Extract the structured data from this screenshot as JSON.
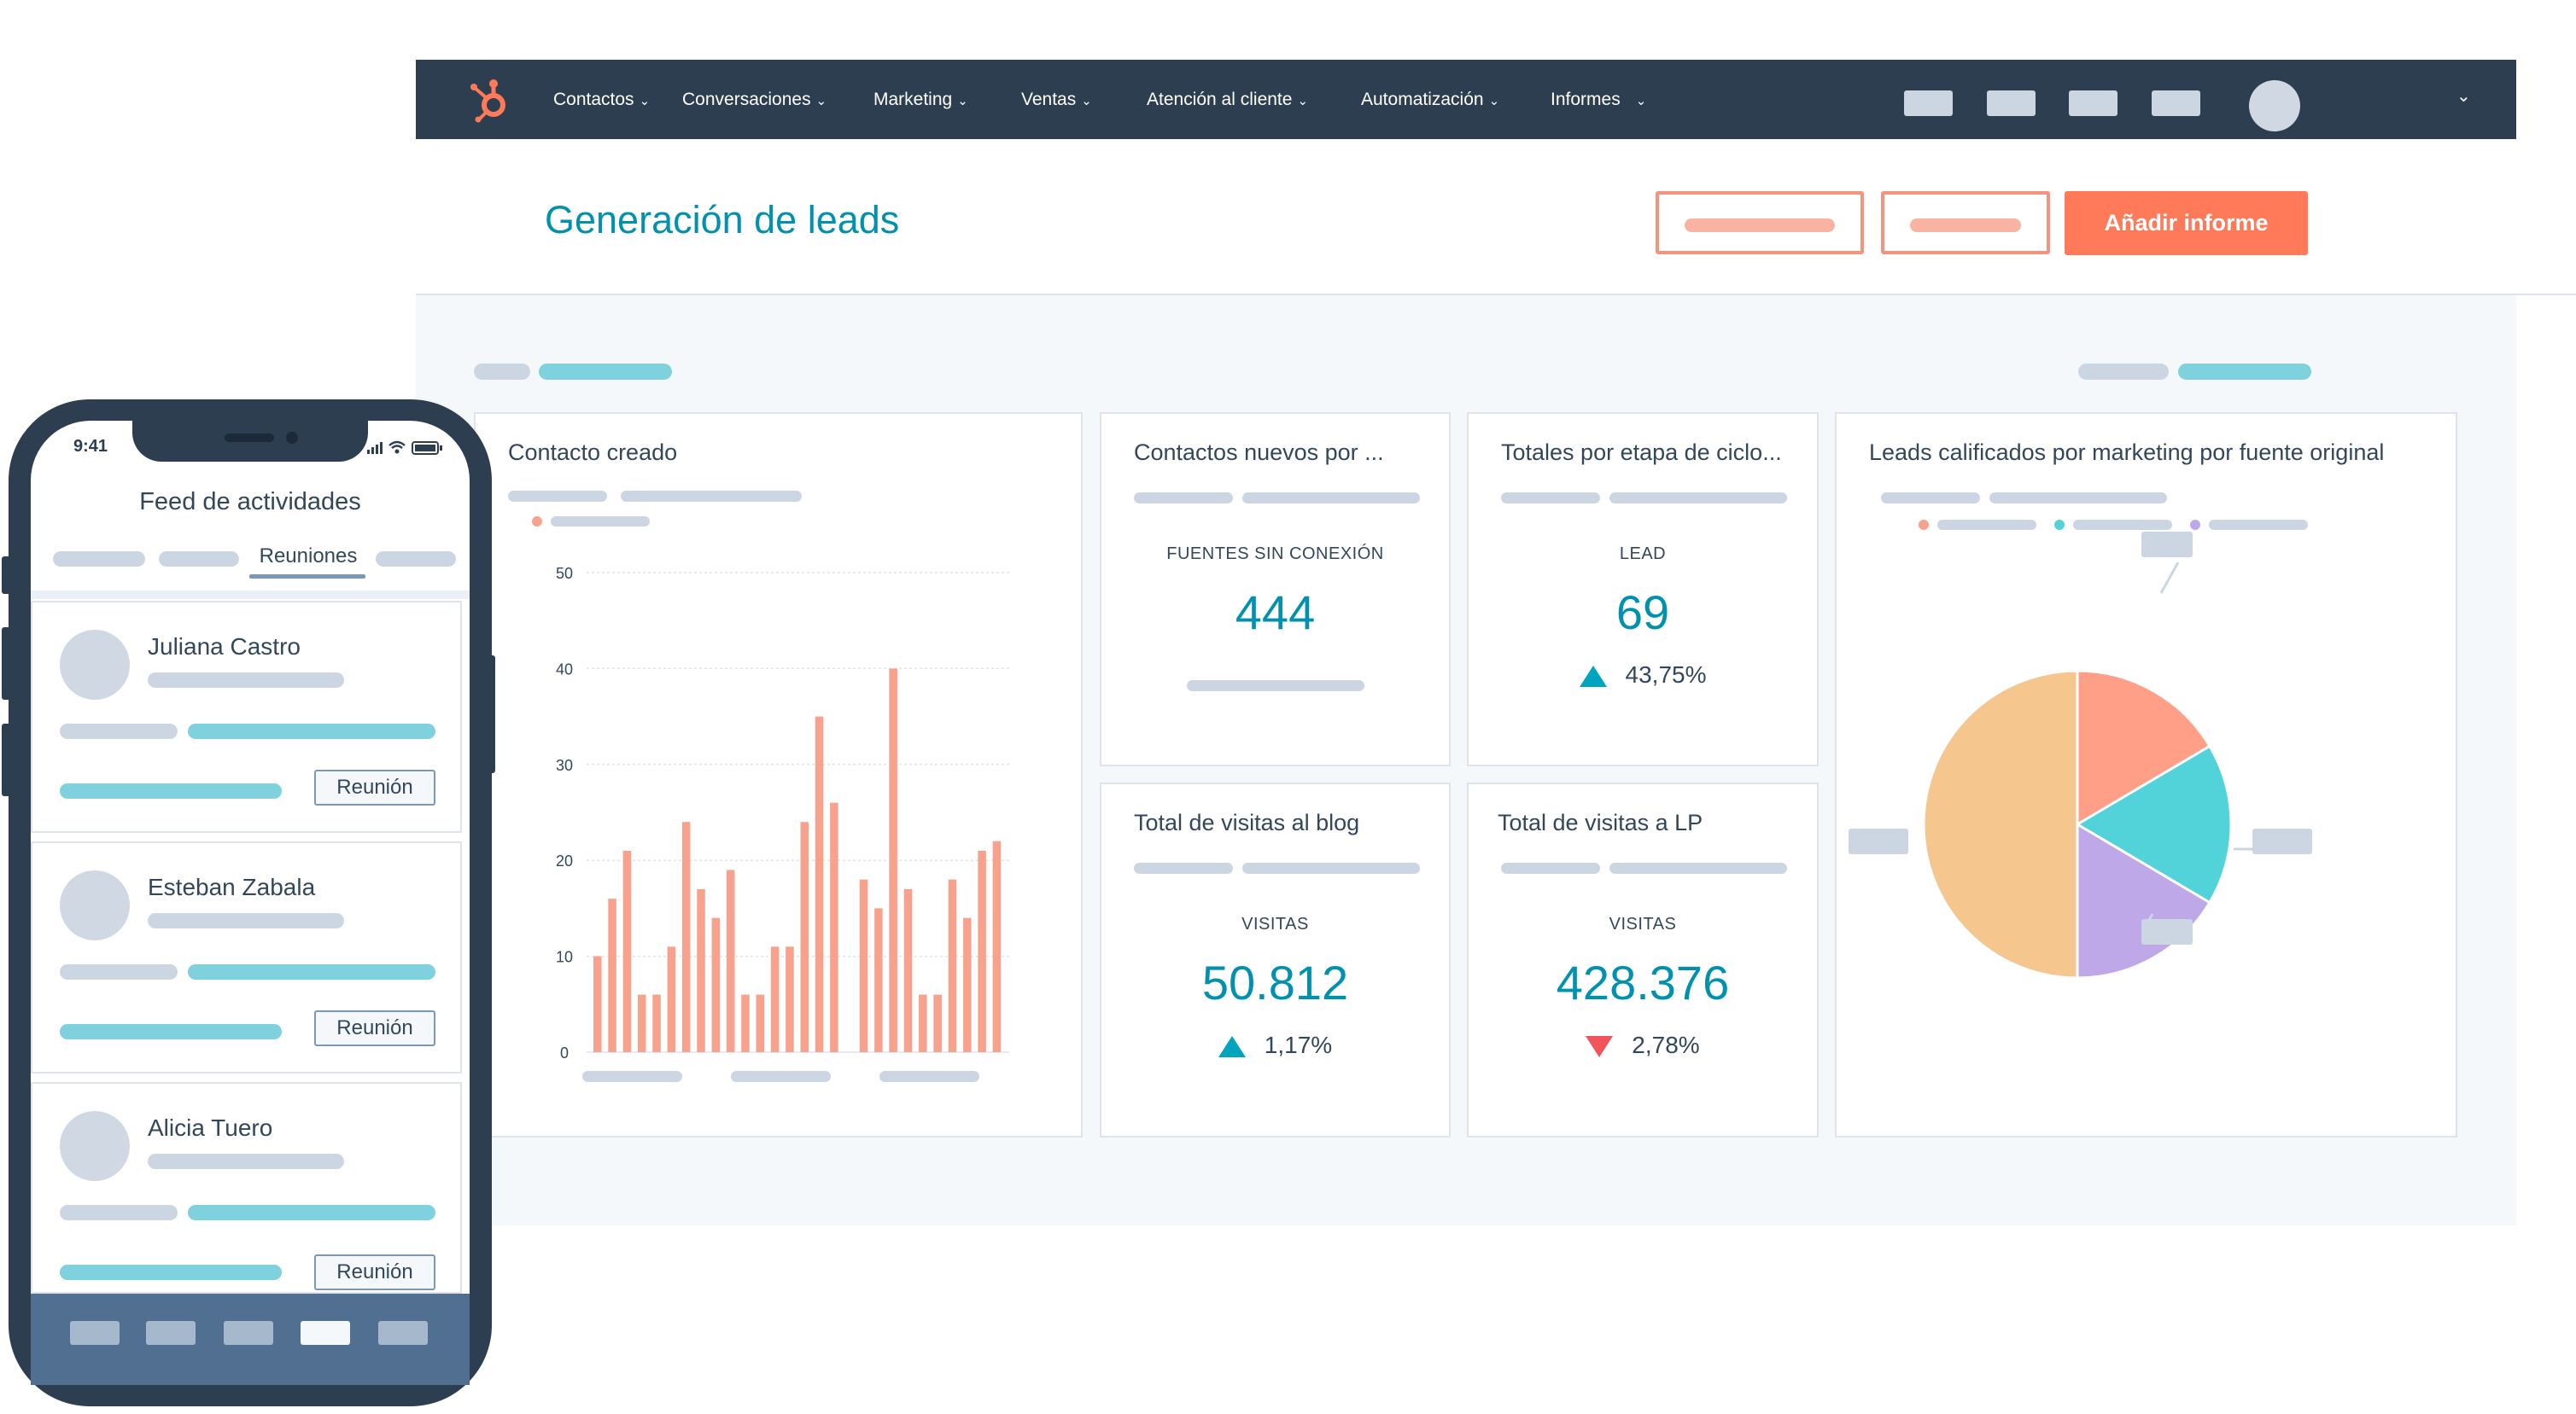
{
  "nav": {
    "items": [
      {
        "label": "Contactos"
      },
      {
        "label": "Conversaciones"
      },
      {
        "label": "Marketing"
      },
      {
        "label": "Ventas"
      },
      {
        "label": "Atención al cliente"
      },
      {
        "label": "Automatización"
      },
      {
        "label": "Informes"
      }
    ],
    "chevron": "⌄"
  },
  "header": {
    "title": "Generación de leads",
    "add_report_label": "Añadir informe"
  },
  "cards": {
    "contacto_creado": {
      "title": "Contacto creado",
      "chart_data": {
        "type": "bar",
        "title": "Contacto creado",
        "ylim": [
          0,
          50
        ],
        "yticks": [
          "0",
          "10",
          "20",
          "30",
          "40",
          "50"
        ],
        "values": [
          10,
          16,
          21,
          6,
          6,
          11,
          24,
          17,
          14,
          19,
          6,
          6,
          11,
          11,
          24,
          35,
          26,
          0,
          18,
          15,
          40,
          17,
          6,
          6,
          18,
          14,
          21,
          22
        ],
        "grid": true,
        "color": "#f8a28e"
      }
    },
    "contactos_nuevos": {
      "title": "Contactos nuevos por ...",
      "label": "FUENTES SIN CONEXIÓN",
      "value": "444"
    },
    "totales_etapa": {
      "title": "Totales por etapa de ciclo...",
      "label": "LEAD",
      "value": "69",
      "delta": "43,75%",
      "direction": "up"
    },
    "leads_calificados": {
      "title": "Leads calificados por marketing por fuente original",
      "chart_data": {
        "type": "pie",
        "values": [
          50,
          16.5,
          17,
          16.5
        ],
        "colors": [
          "#f5c78e",
          "#ff9f88",
          "#51d3d9",
          "#bfa8e8"
        ]
      }
    },
    "visitas_blog": {
      "title": "Total de visitas al blog",
      "label": "VISITAS",
      "value": "50.812",
      "delta": "1,17%",
      "direction": "up"
    },
    "visitas_lp": {
      "title": "Total de visitas a LP",
      "label": "VISITAS",
      "value": "428.376",
      "delta": "2,78%",
      "direction": "down"
    }
  },
  "phone": {
    "time": "9:41",
    "title": "Feed de actividades",
    "active_tab": "Reuniones",
    "activities": [
      {
        "name": "Juliana Castro",
        "button": "Reunión"
      },
      {
        "name": "Esteban Zabala",
        "button": "Reunión"
      },
      {
        "name": "Alicia Tuero",
        "button": "Reunión"
      }
    ]
  },
  "colors": {
    "nav_bg": "#2d3e50",
    "accent": "#ff7a59",
    "teal": "#0091ae",
    "up": "#00a4bd",
    "down": "#f2545b"
  }
}
